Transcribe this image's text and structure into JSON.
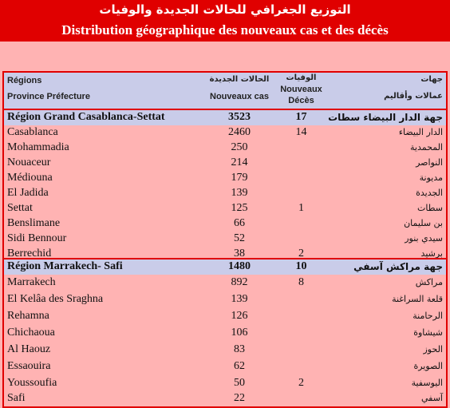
{
  "title": {
    "arabic": "التوزيع الجغرافي للحالات الجديدة والوفيات",
    "french": "Distribution géographique des nouveaux cas et des décès"
  },
  "header": {
    "regions_label": "Régions",
    "province_label": "Province Préfecture",
    "cas_ar": "الحالات الجديدة",
    "cas_fr": "Nouveaux cas",
    "deces_ar": "الوفيات",
    "deces_fr_line1": "Nouveaux",
    "deces_fr_line2": "Décès",
    "regions_ar": "جهات",
    "province_ar": "عمالات وأقاليم"
  },
  "regions": [
    {
      "name_fr": "Région Grand Casablanca-Settat",
      "name_ar": "جهة الدار البيضاء سطات",
      "cas": "3523",
      "deces": "17",
      "rows": [
        {
          "fr": "Casablanca",
          "ar": "الدار البيضاء",
          "cas": "2460",
          "deces": "14"
        },
        {
          "fr": "Mohammadia",
          "ar": "المحمدية",
          "cas": "250",
          "deces": ""
        },
        {
          "fr": "Nouaceur",
          "ar": "النواصر",
          "cas": "214",
          "deces": ""
        },
        {
          "fr": "Médiouna",
          "ar": "مديونة",
          "cas": "179",
          "deces": ""
        },
        {
          "fr": "El Jadida",
          "ar": "الجديدة",
          "cas": "139",
          "deces": ""
        },
        {
          "fr": "Settat",
          "ar": "سطات",
          "cas": "125",
          "deces": "1"
        },
        {
          "fr": "Benslimane",
          "ar": "بن سليمان",
          "cas": "66",
          "deces": ""
        },
        {
          "fr": "Sidi Bennour",
          "ar": "سيدي بنور",
          "cas": "52",
          "deces": ""
        },
        {
          "fr": "Berrechid",
          "ar": "برشيد",
          "cas": "38",
          "deces": "2"
        }
      ]
    },
    {
      "name_fr": "Région Marrakech- Safi",
      "name_ar": "جهة مراكش آسفي",
      "cas": "1480",
      "deces": "10",
      "rows": [
        {
          "fr": "Marrakech",
          "ar": "مراكش",
          "cas": "892",
          "deces": "8"
        },
        {
          "fr": "El Kelâa des  Sraghna",
          "ar": "قلعة السراغنة",
          "cas": "139",
          "deces": ""
        },
        {
          "fr": "Rehamna",
          "ar": "الرحامنة",
          "cas": "126",
          "deces": ""
        },
        {
          "fr": "Chichaoua",
          "ar": "شيشاوة",
          "cas": "106",
          "deces": ""
        },
        {
          "fr": "Al  Haouz",
          "ar": "الحوز",
          "cas": "83",
          "deces": ""
        },
        {
          "fr": "Essaouira",
          "ar": "الصويرة",
          "cas": "62",
          "deces": ""
        },
        {
          "fr": "Youssoufia",
          "ar": "اليوسفية",
          "cas": "50",
          "deces": "2"
        },
        {
          "fr": "Safi",
          "ar": "آسفي",
          "cas": "22",
          "deces": ""
        }
      ]
    }
  ]
}
